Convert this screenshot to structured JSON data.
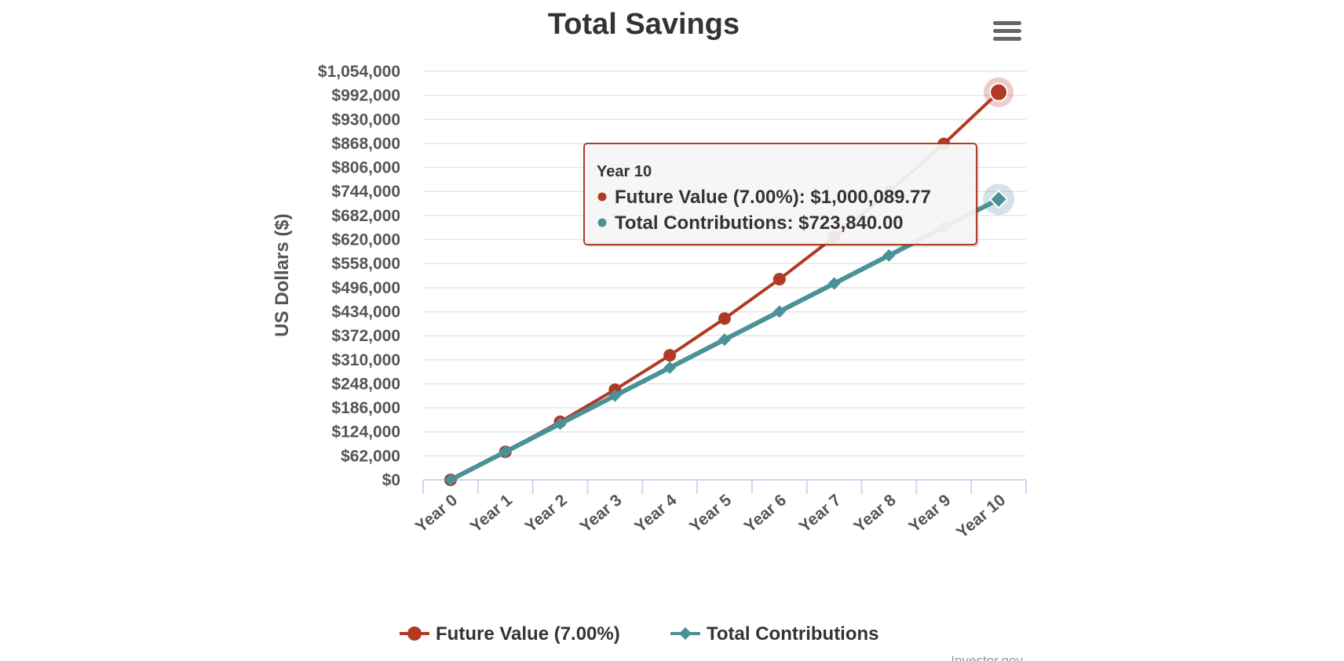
{
  "chart_data": {
    "type": "line",
    "title": "Total Savings",
    "ylabel": "US Dollars ($)",
    "xlabel": "",
    "categories": [
      "Year 0",
      "Year 1",
      "Year 2",
      "Year 3",
      "Year 4",
      "Year 5",
      "Year 6",
      "Year 7",
      "Year 8",
      "Year 9",
      "Year 10"
    ],
    "ylim": [
      0,
      1054000
    ],
    "yticks": [
      0,
      62000,
      124000,
      186000,
      248000,
      310000,
      372000,
      434000,
      496000,
      558000,
      620000,
      682000,
      744000,
      806000,
      868000,
      930000,
      992000,
      1054000
    ],
    "ytick_labels": [
      "$0",
      "$62,000",
      "$124,000",
      "$186,000",
      "$248,000",
      "$310,000",
      "$372,000",
      "$434,000",
      "$496,000",
      "$558,000",
      "$620,000",
      "$682,000",
      "$744,000",
      "$806,000",
      "$868,000",
      "$930,000",
      "$992,000",
      "$1,054,000"
    ],
    "grid": true,
    "legend_position": "bottom-center",
    "series": [
      {
        "name": "Future Value (7.00%)",
        "color": "#b03a24",
        "marker": "circle",
        "values": [
          0,
          72384,
          149835,
          232707,
          321378,
          416253,
          517770,
          626395,
          742623,
          866987,
          1000089.77
        ]
      },
      {
        "name": "Total Contributions",
        "color": "#4a9297",
        "marker": "diamond",
        "values": [
          0,
          72384,
          144768,
          217152,
          289536,
          361920,
          434304,
          506688,
          579072,
          651456,
          723840
        ]
      }
    ],
    "tooltip": {
      "category": "Year 10",
      "rows": [
        {
          "label": "Future Value (7.00%):",
          "value": "$1,000,089.77",
          "color": "#b03a24"
        },
        {
          "label": "Total Contributions:",
          "value": "$723,840.00",
          "color": "#4a9297"
        }
      ]
    },
    "credit": "Investor.gov"
  },
  "menu": {
    "icon": "hamburger-menu-icon"
  }
}
